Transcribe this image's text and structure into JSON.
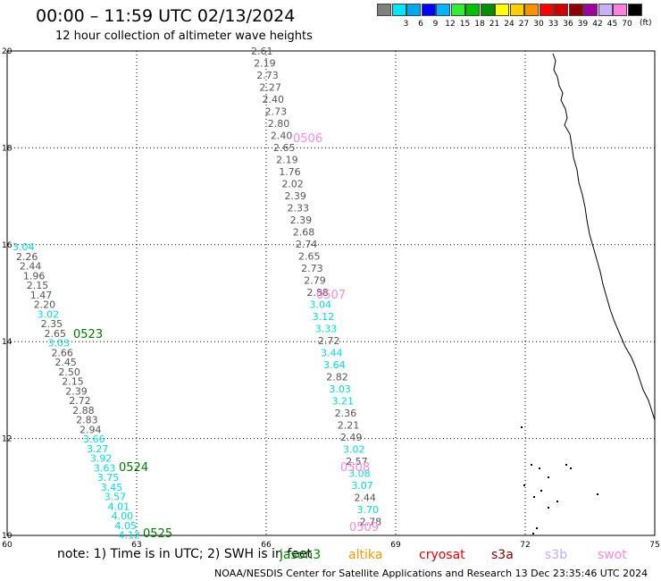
{
  "header": {
    "title": "00:00 – 11:59 UTC 02/13/2024",
    "subtitle": "12 hour collection of altimeter wave heights"
  },
  "scale": {
    "unit_label": "(ft)",
    "bins": [
      {
        "label": "",
        "color": "#808080"
      },
      {
        "label": "3",
        "color": "#00e5ff"
      },
      {
        "label": "6",
        "color": "#00a8f0"
      },
      {
        "label": "9",
        "color": "#0000ff"
      },
      {
        "label": "12",
        "color": "#00b4ff"
      },
      {
        "label": "15",
        "color": "#33ee33"
      },
      {
        "label": "18",
        "color": "#00c000"
      },
      {
        "label": "21",
        "color": "#009000"
      },
      {
        "label": "24",
        "color": "#ffff00"
      },
      {
        "label": "27",
        "color": "#ffd000"
      },
      {
        "label": "30",
        "color": "#ff9000"
      },
      {
        "label": "33",
        "color": "#ff0000"
      },
      {
        "label": "36",
        "color": "#d00000"
      },
      {
        "label": "39",
        "color": "#900000"
      },
      {
        "label": "42",
        "color": "#a000a0"
      },
      {
        "label": "45",
        "color": "#c8b0ff"
      },
      {
        "label": "70",
        "color": "#ff80e0"
      },
      {
        "label": "",
        "color": "#000000"
      }
    ]
  },
  "map": {
    "lon_labels": [
      "60",
      "63",
      "66",
      "69",
      "72",
      "75"
    ],
    "lat_labels": [
      "20",
      "18",
      "16",
      "14",
      "12",
      "10"
    ],
    "colors": {
      "grey": "#555555",
      "cyan": "#00dddd",
      "green": "#007700",
      "pink": "#ff88dd"
    },
    "tracks": [
      {
        "id": "left",
        "labels": [
          {
            "name": "0523",
            "color": "green"
          },
          {
            "name": "0524",
            "color": "green"
          },
          {
            "name": "0525",
            "color": "green"
          }
        ],
        "values": [
          {
            "v": "3.04",
            "c": "cyan"
          },
          {
            "v": "2.26",
            "c": "grey"
          },
          {
            "v": "2.44",
            "c": "grey"
          },
          {
            "v": "1.96",
            "c": "grey"
          },
          {
            "v": "2.15",
            "c": "grey"
          },
          {
            "v": "1.47",
            "c": "grey"
          },
          {
            "v": "2.20",
            "c": "grey"
          },
          {
            "v": "3.02",
            "c": "cyan"
          },
          {
            "v": "2.35",
            "c": "grey"
          },
          {
            "v": "2.65",
            "c": "grey"
          },
          {
            "v": "3.03",
            "c": "cyan"
          },
          {
            "v": "2.66",
            "c": "grey"
          },
          {
            "v": "2.45",
            "c": "grey"
          },
          {
            "v": "2.50",
            "c": "grey"
          },
          {
            "v": "2.15",
            "c": "grey"
          },
          {
            "v": "2.39",
            "c": "grey"
          },
          {
            "v": "2.72",
            "c": "grey"
          },
          {
            "v": "2.88",
            "c": "grey"
          },
          {
            "v": "2.83",
            "c": "grey"
          },
          {
            "v": "2.94",
            "c": "grey"
          },
          {
            "v": "3.66",
            "c": "cyan"
          },
          {
            "v": "3.27",
            "c": "cyan"
          },
          {
            "v": "3.92",
            "c": "cyan"
          },
          {
            "v": "3.63",
            "c": "cyan"
          },
          {
            "v": "3.75",
            "c": "cyan"
          },
          {
            "v": "3.45",
            "c": "cyan"
          },
          {
            "v": "3.57",
            "c": "cyan"
          },
          {
            "v": "4.01",
            "c": "cyan"
          },
          {
            "v": "4.00",
            "c": "cyan"
          },
          {
            "v": "4.05",
            "c": "cyan"
          },
          {
            "v": "4.12",
            "c": "cyan"
          }
        ]
      },
      {
        "id": "middle",
        "labels": [
          {
            "name": "0506",
            "color": "pink"
          },
          {
            "name": "0507",
            "color": "pink"
          },
          {
            "name": "0508",
            "color": "pink"
          },
          {
            "name": "0509",
            "color": "pink"
          }
        ],
        "values": [
          {
            "v": "2.61",
            "c": "grey"
          },
          {
            "v": "2.19",
            "c": "grey"
          },
          {
            "v": "2.73",
            "c": "grey"
          },
          {
            "v": "2.27",
            "c": "grey"
          },
          {
            "v": "2.40",
            "c": "grey"
          },
          {
            "v": "2.73",
            "c": "grey"
          },
          {
            "v": "2.80",
            "c": "grey"
          },
          {
            "v": "2.40",
            "c": "grey"
          },
          {
            "v": "2.65",
            "c": "grey"
          },
          {
            "v": "2.19",
            "c": "grey"
          },
          {
            "v": "1.76",
            "c": "grey"
          },
          {
            "v": "2.02",
            "c": "grey"
          },
          {
            "v": "2.39",
            "c": "grey"
          },
          {
            "v": "2.33",
            "c": "grey"
          },
          {
            "v": "2.39",
            "c": "grey"
          },
          {
            "v": "2.68",
            "c": "grey"
          },
          {
            "v": "2.74",
            "c": "grey"
          },
          {
            "v": "2.65",
            "c": "grey"
          },
          {
            "v": "2.73",
            "c": "grey"
          },
          {
            "v": "2.79",
            "c": "grey"
          },
          {
            "v": "2.88",
            "c": "grey"
          },
          {
            "v": "3.04",
            "c": "cyan"
          },
          {
            "v": "3.12",
            "c": "cyan"
          },
          {
            "v": "3.33",
            "c": "cyan"
          },
          {
            "v": "2.72",
            "c": "grey"
          },
          {
            "v": "3.44",
            "c": "cyan"
          },
          {
            "v": "3.64",
            "c": "cyan"
          },
          {
            "v": "2.82",
            "c": "grey"
          },
          {
            "v": "3.03",
            "c": "cyan"
          },
          {
            "v": "3.21",
            "c": "cyan"
          },
          {
            "v": "2.36",
            "c": "grey"
          },
          {
            "v": "2.21",
            "c": "grey"
          },
          {
            "v": "2.49",
            "c": "grey"
          },
          {
            "v": "3.02",
            "c": "cyan"
          },
          {
            "v": "2.57",
            "c": "grey"
          },
          {
            "v": "3.08",
            "c": "cyan"
          },
          {
            "v": "3.07",
            "c": "cyan"
          },
          {
            "v": "2.44",
            "c": "grey"
          },
          {
            "v": "3.70",
            "c": "cyan"
          },
          {
            "v": "2.78",
            "c": "grey"
          }
        ]
      }
    ]
  },
  "footer": {
    "note": "note:  1) Time is in UTC;  2) SWH is in feet",
    "satellites": [
      {
        "name": "jason3",
        "color": "#008800"
      },
      {
        "name": "altika",
        "color": "#ff9900"
      },
      {
        "name": "cryosat",
        "color": "#ee0000"
      },
      {
        "name": "s3a",
        "color": "#880000"
      },
      {
        "name": "s3b",
        "color": "#c8a8ff"
      },
      {
        "name": "swot",
        "color": "#ff88dd"
      }
    ],
    "credit": "NOAA/NESDIS Center for Satellite Applications and Research    13 Dec 23:35:46 UTC 2024"
  }
}
